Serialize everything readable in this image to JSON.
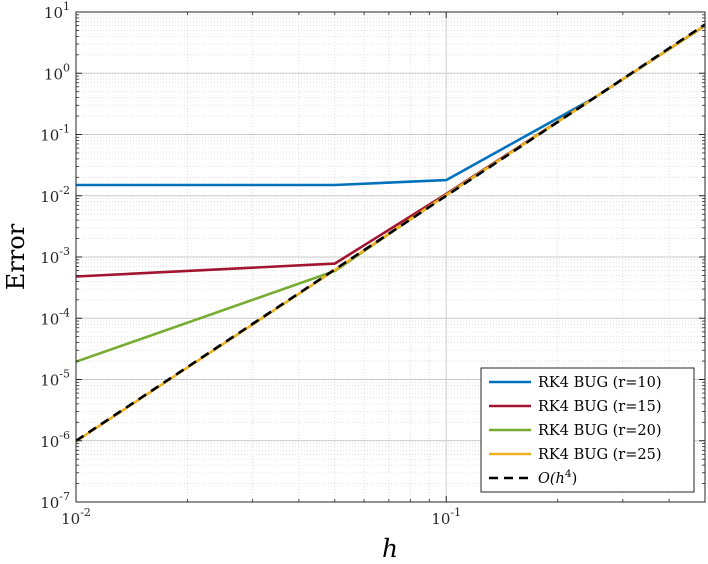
{
  "chart_data": {
    "type": "line",
    "title": "",
    "xlabel": "h",
    "ylabel": "Error",
    "xscale": "log",
    "yscale": "log",
    "xlim": [
      0.01,
      0.5
    ],
    "ylim": [
      1e-07,
      10
    ],
    "grid": true,
    "legend_position": "bottom-right",
    "x_ticks": [
      {
        "base": "10",
        "exp": "-2",
        "value": 0.01
      },
      {
        "base": "10",
        "exp": "-1",
        "value": 0.1
      }
    ],
    "y_ticks": [
      {
        "base": "10",
        "exp": "-7",
        "value": 1e-07
      },
      {
        "base": "10",
        "exp": "-6",
        "value": 1e-06
      },
      {
        "base": "10",
        "exp": "-5",
        "value": 1e-05
      },
      {
        "base": "10",
        "exp": "-4",
        "value": 0.0001
      },
      {
        "base": "10",
        "exp": "-3",
        "value": 0.001
      },
      {
        "base": "10",
        "exp": "-2",
        "value": 0.01
      },
      {
        "base": "10",
        "exp": "-1",
        "value": 0.1
      },
      {
        "base": "10",
        "exp": "0",
        "value": 1
      },
      {
        "base": "10",
        "exp": "1",
        "value": 10
      }
    ],
    "x": [
      0.01,
      0.05,
      0.1,
      0.25,
      0.5
    ],
    "series": [
      {
        "name": "RK4 BUG (r=10)",
        "color": "#0072BD",
        "dash": "solid",
        "values": [
          0.015,
          0.015,
          0.018,
          0.39,
          6.0
        ]
      },
      {
        "name": "RK4 BUG (r=15)",
        "color": "#A2142F",
        "dash": "solid",
        "values": [
          0.00048,
          0.00078,
          0.0107,
          0.39,
          6.0
        ]
      },
      {
        "name": "RK4 BUG (r=20)",
        "color": "#77AC30",
        "dash": "solid",
        "values": [
          1.95e-05,
          0.00059,
          0.0103,
          0.39,
          6.0
        ]
      },
      {
        "name": "RK4 BUG (r=25)",
        "color": "#EDB120",
        "dash": "solid",
        "values": [
          9.8e-07,
          0.00061,
          0.0103,
          0.39,
          6.0
        ]
      },
      {
        "name_base": "O(h",
        "name_exp": "4",
        "name_close": ")",
        "color": "#000000",
        "dash": "dashed",
        "values": [
          1e-06,
          0.000625,
          0.01,
          0.39,
          6.25
        ]
      }
    ]
  }
}
